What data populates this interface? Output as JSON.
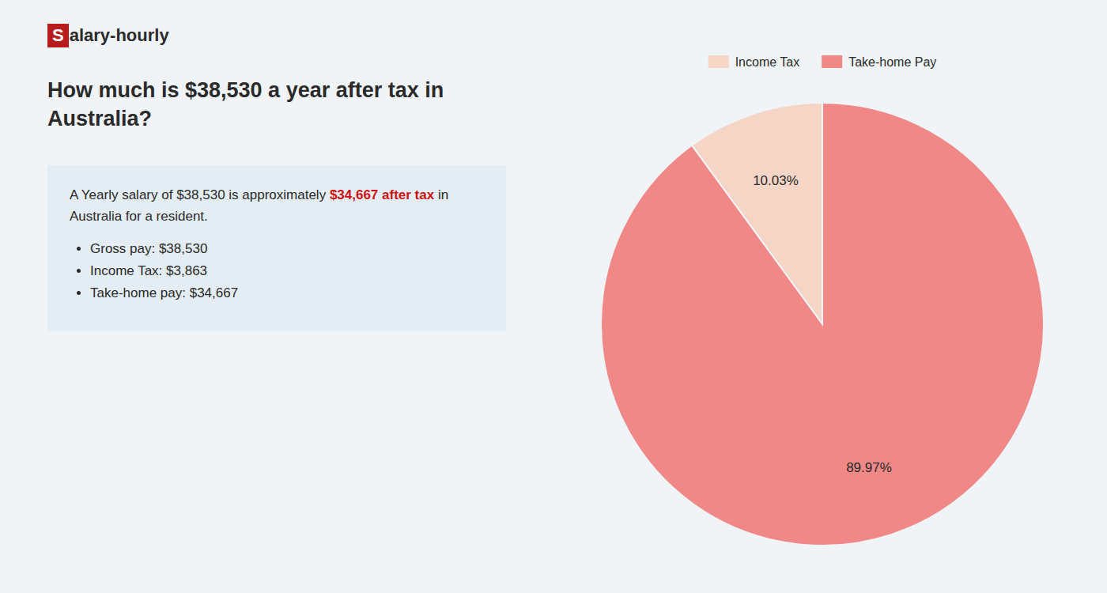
{
  "chart_data": {
    "type": "pie",
    "title": [
      "How much is $38,530 a year after tax in",
      "Australia?"
    ],
    "annotations": [
      "S",
      "alary-hourly",
      "A Yearly salary of $38,530 is approximately ",
      "$34,667 after tax",
      " in",
      "Australia for a resident.",
      "Gross pay: $38,530",
      "Income Tax: $3,863",
      "Take-home pay: $34,667"
    ],
    "categories": [
      "Income Tax",
      "Take-home Pay"
    ],
    "values": [
      10.03,
      89.97
    ],
    "value_labels": [
      "10.03%",
      "89.97%"
    ],
    "colors": [
      "#f5d5c5",
      "#f08888"
    ],
    "data_labels": true,
    "legend": "top"
  }
}
